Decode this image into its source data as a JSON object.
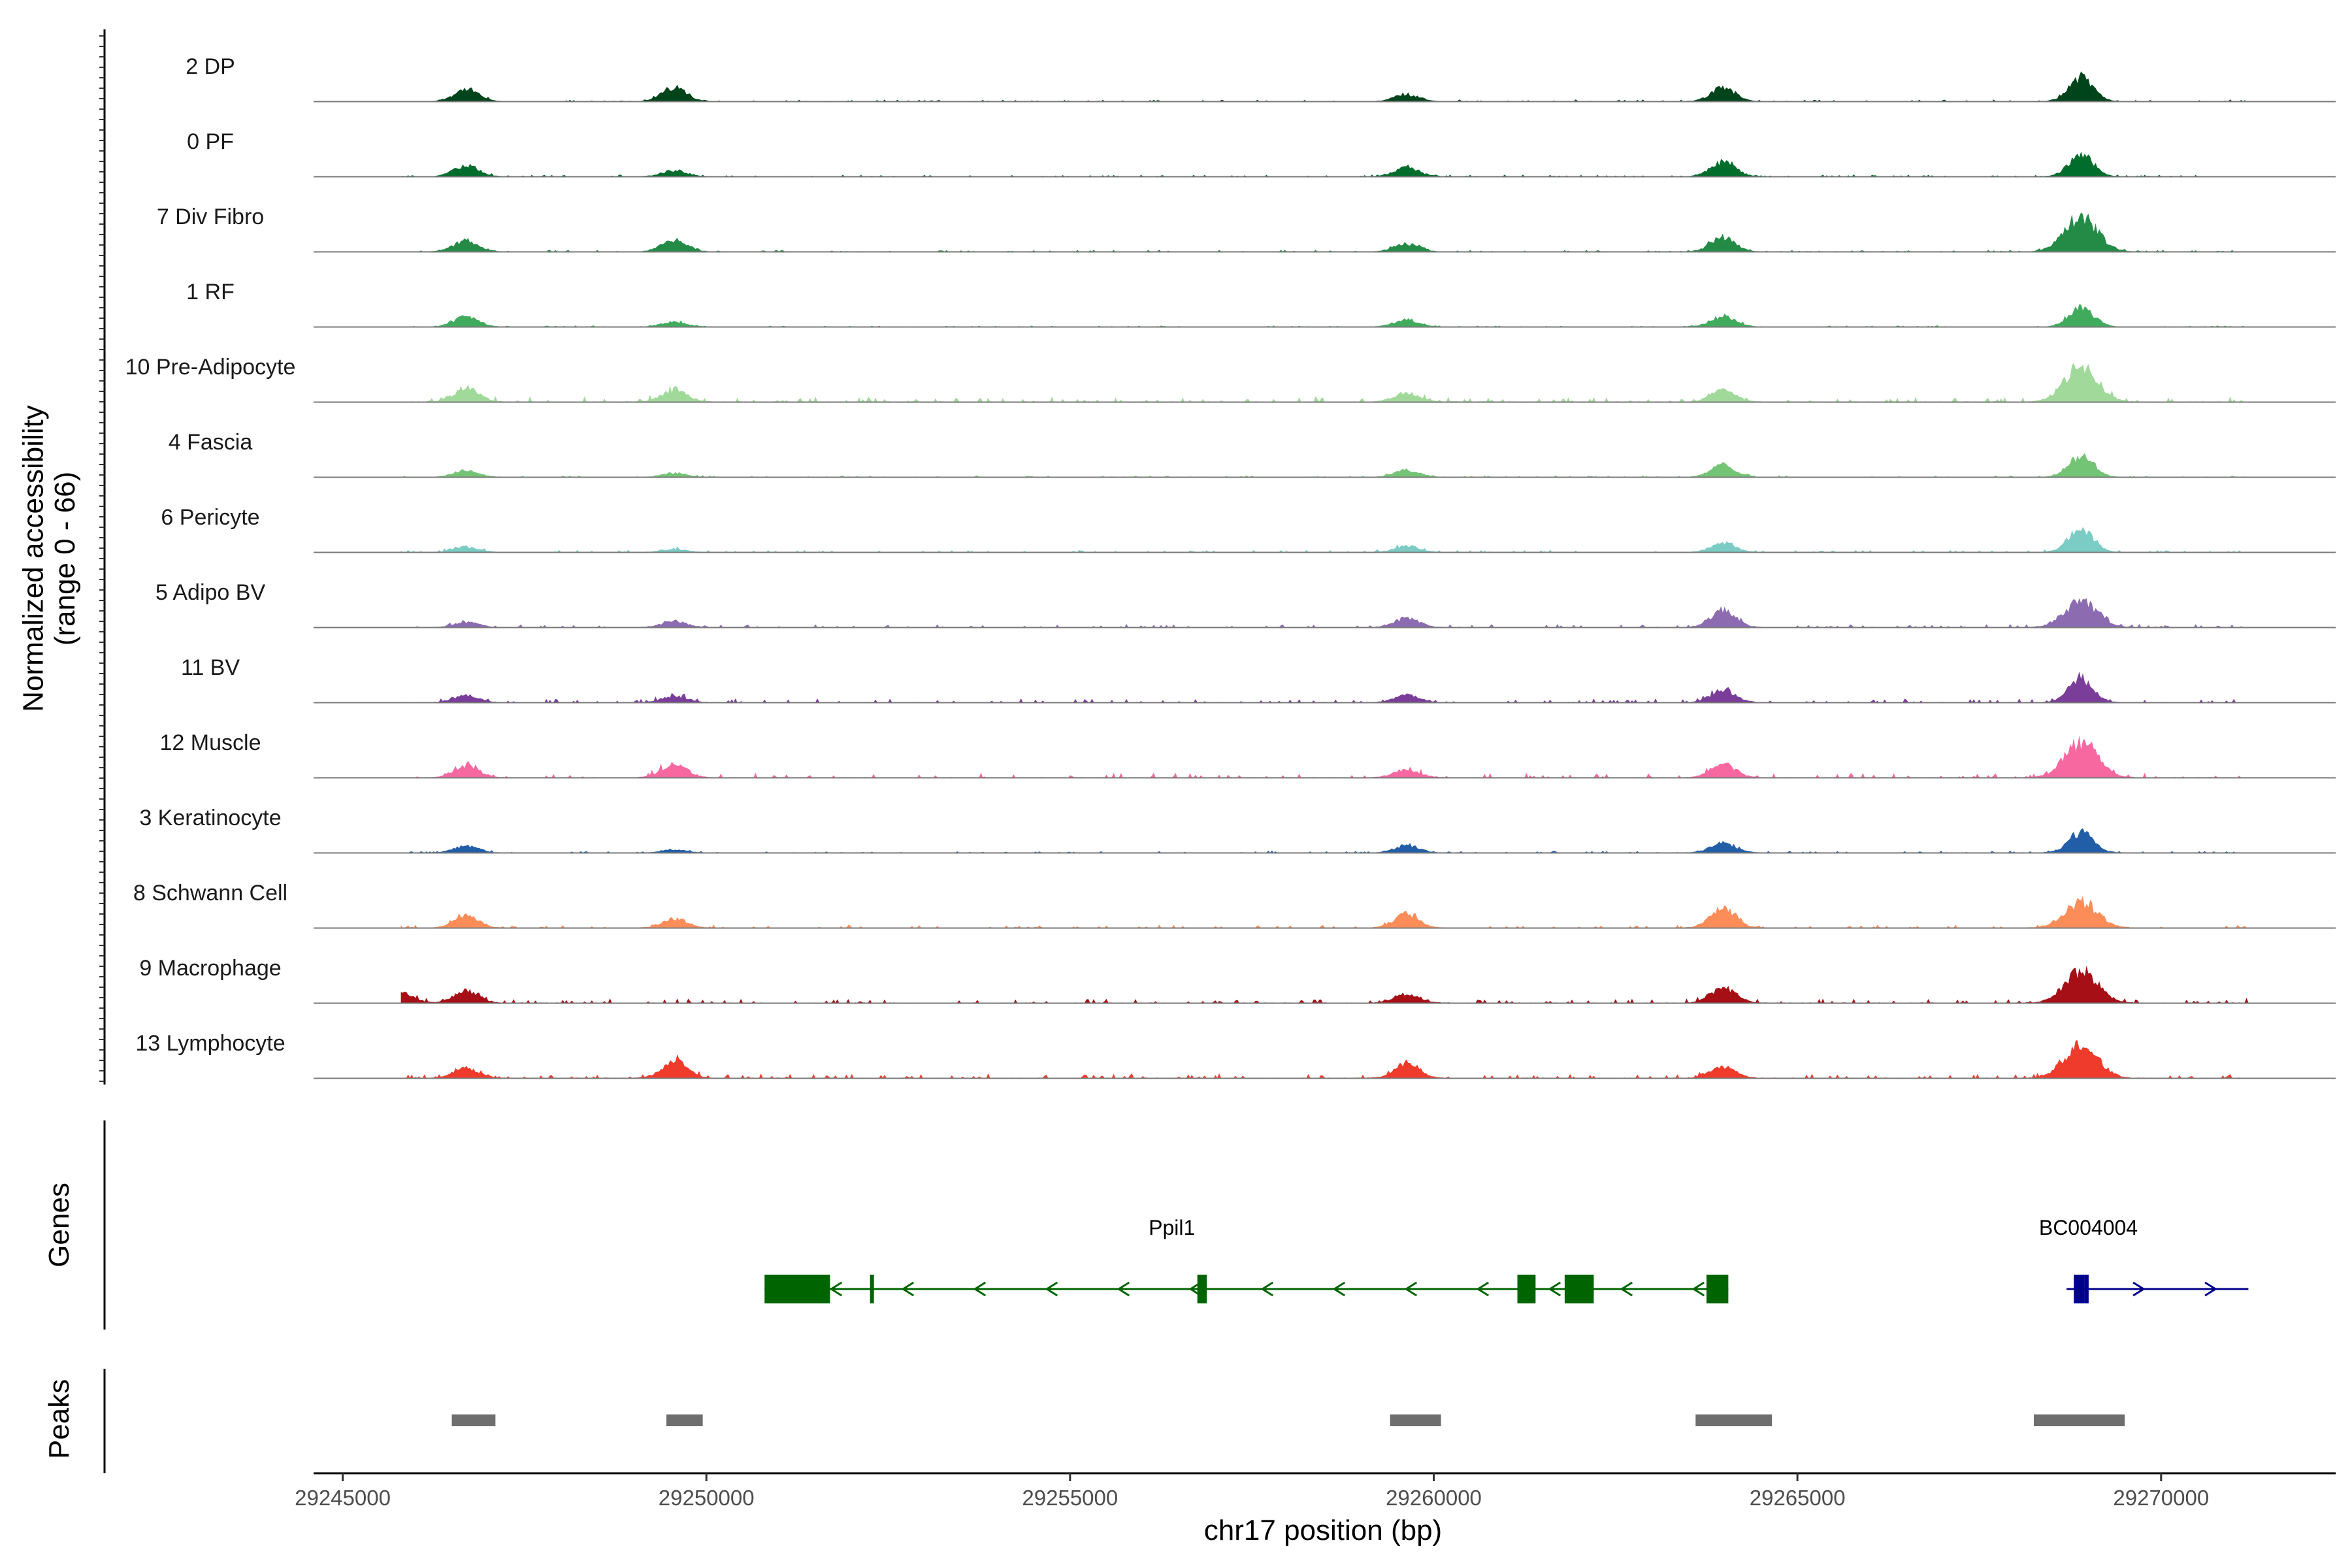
{
  "chart_data": {
    "type": "area",
    "title": "",
    "xlabel": "chr17 position (bp)",
    "ylabel": "Normalized accessibility\n(range 0 - 66)",
    "ylim": [
      0,
      66
    ],
    "xlim": [
      29244600,
      29272400
    ],
    "x_ticks": [
      29245000,
      29250000,
      29255000,
      29260000,
      29265000,
      29270000
    ],
    "x_tick_labels": [
      "29245000",
      "29250000",
      "29255000",
      "29260000",
      "29265000",
      "29270000"
    ],
    "genes_panel_label": "Genes",
    "peaks_panel_label": "Peaks",
    "series": [
      {
        "name": "2 DP",
        "color": "#00441B",
        "peaks": [
          [
            29246700,
            12
          ],
          [
            29249560,
            14
          ],
          [
            29259630,
            7
          ],
          [
            29263980,
            13
          ],
          [
            29268900,
            24
          ]
        ],
        "noise": 1.2
      },
      {
        "name": "0 PF",
        "color": "#006D2C",
        "peaks": [
          [
            29246700,
            11
          ],
          [
            29249560,
            6
          ],
          [
            29259630,
            9
          ],
          [
            29263980,
            15
          ],
          [
            29268900,
            21
          ]
        ],
        "noise": 1.2
      },
      {
        "name": "7 Div Fibro",
        "color": "#238B45",
        "peaks": [
          [
            29246700,
            11
          ],
          [
            29249560,
            12
          ],
          [
            29259630,
            8
          ],
          [
            29263980,
            14
          ],
          [
            29268900,
            34
          ]
        ],
        "noise": 1.2
      },
      {
        "name": "1 RF",
        "color": "#41AB5D",
        "peaks": [
          [
            29246700,
            10
          ],
          [
            29249560,
            5
          ],
          [
            29259630,
            7
          ],
          [
            29263980,
            11
          ],
          [
            29268900,
            20
          ]
        ],
        "noise": 0.8
      },
      {
        "name": "10 Pre-Adipocyte",
        "color": "#A1D99B",
        "peaks": [
          [
            29246700,
            14
          ],
          [
            29249560,
            12
          ],
          [
            29259630,
            9
          ],
          [
            29263980,
            11
          ],
          [
            29268900,
            35
          ]
        ],
        "noise": 3.5
      },
      {
        "name": "4 Fascia",
        "color": "#74C476",
        "peaks": [
          [
            29246700,
            7
          ],
          [
            29249560,
            4
          ],
          [
            29259630,
            7
          ],
          [
            29263980,
            12
          ],
          [
            29268900,
            22
          ]
        ],
        "noise": 1.0
      },
      {
        "name": "6 Pericyte",
        "color": "#7BCCC4",
        "peaks": [
          [
            29246700,
            5
          ],
          [
            29249560,
            3
          ],
          [
            29259630,
            6
          ],
          [
            29263980,
            9
          ],
          [
            29268900,
            25
          ]
        ],
        "noise": 1.5
      },
      {
        "name": "5 Adipo BV",
        "color": "#8C6BB1",
        "peaks": [
          [
            29246700,
            5
          ],
          [
            29249560,
            6
          ],
          [
            29259630,
            9
          ],
          [
            29263980,
            17
          ],
          [
            29268900,
            26
          ]
        ],
        "noise": 2.0
      },
      {
        "name": "11 BV",
        "color": "#7A3D9A",
        "peaks": [
          [
            29246700,
            7
          ],
          [
            29249560,
            6
          ],
          [
            29259630,
            7
          ],
          [
            29263980,
            12
          ],
          [
            29268900,
            23
          ]
        ],
        "noise": 2.5
      },
      {
        "name": "12 Muscle",
        "color": "#F768A1",
        "peaks": [
          [
            29246700,
            12
          ],
          [
            29249560,
            14
          ],
          [
            29259630,
            8
          ],
          [
            29263980,
            14
          ],
          [
            29268900,
            36
          ]
        ],
        "noise": 3.0
      },
      {
        "name": "3 Keratinocyte",
        "color": "#225EA8",
        "peaks": [
          [
            29246700,
            7
          ],
          [
            29249560,
            3
          ],
          [
            29259630,
            7
          ],
          [
            29263980,
            10
          ],
          [
            29268900,
            20
          ]
        ],
        "noise": 1.2
      },
      {
        "name": "8 Schwann Cell",
        "color": "#FC8D59",
        "peaks": [
          [
            29246700,
            12
          ],
          [
            29249560,
            9
          ],
          [
            29259630,
            14
          ],
          [
            29263980,
            20
          ],
          [
            29268900,
            26
          ]
        ],
        "noise": 2.0
      },
      {
        "name": "9 Macrophage",
        "color": "#A50F15",
        "peaks": [
          [
            29245800,
            10
          ],
          [
            29246700,
            12
          ],
          [
            29259630,
            9
          ],
          [
            29263980,
            16
          ],
          [
            29268900,
            32
          ]
        ],
        "noise": 3.0
      },
      {
        "name": "13 Lymphocyte",
        "color": "#EF3B2C",
        "peaks": [
          [
            29246700,
            10
          ],
          [
            29249560,
            17
          ],
          [
            29259630,
            15
          ],
          [
            29263980,
            11
          ],
          [
            29268900,
            34
          ]
        ],
        "noise": 3.0
      }
    ],
    "genes": [
      {
        "name": "Ppil1",
        "strand": "-",
        "color": "#006400",
        "start": 29250800,
        "end": 29264050,
        "exons": [
          [
            29250800,
            29251700
          ],
          [
            29252250,
            29252300
          ],
          [
            29256750,
            29256880
          ],
          [
            29261150,
            29261400
          ],
          [
            29261800,
            29262200
          ],
          [
            29263750,
            29264050
          ]
        ]
      },
      {
        "name": "BC004004",
        "strand": "+",
        "color": "#00008B",
        "start": 29268700,
        "end": 29271200,
        "exons": [
          [
            29268800,
            29268950
          ],
          [
            29268950,
            29269000
          ]
        ]
      }
    ],
    "peaks": [
      [
        29246500,
        29247100
      ],
      [
        29249450,
        29249950
      ],
      [
        29259400,
        29260100
      ],
      [
        29263600,
        29264650
      ],
      [
        29268250,
        29269500
      ]
    ]
  }
}
